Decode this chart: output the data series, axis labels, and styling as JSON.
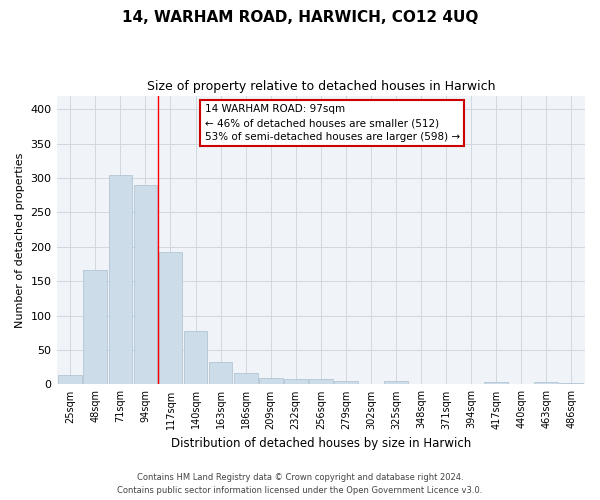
{
  "title1": "14, WARHAM ROAD, HARWICH, CO12 4UQ",
  "title2": "Size of property relative to detached houses in Harwich",
  "xlabel": "Distribution of detached houses by size in Harwich",
  "ylabel": "Number of detached properties",
  "categories": [
    "25sqm",
    "48sqm",
    "71sqm",
    "94sqm",
    "117sqm",
    "140sqm",
    "163sqm",
    "186sqm",
    "209sqm",
    "232sqm",
    "256sqm",
    "279sqm",
    "302sqm",
    "325sqm",
    "348sqm",
    "371sqm",
    "394sqm",
    "417sqm",
    "440sqm",
    "463sqm",
    "486sqm"
  ],
  "values": [
    13,
    167,
    305,
    290,
    192,
    77,
    32,
    17,
    9,
    8,
    8,
    5,
    0,
    5,
    0,
    0,
    0,
    3,
    0,
    3,
    2
  ],
  "bar_color": "#ccdde9",
  "bar_edge_color": "#aabfcf",
  "grid_color": "#d0d8e0",
  "redline_x": 3.5,
  "annotation_text": "14 WARHAM ROAD: 97sqm\n← 46% of detached houses are smaller (512)\n53% of semi-detached houses are larger (598) →",
  "annotation_box_color": "white",
  "annotation_box_edge": "#cc0000",
  "footer1": "Contains HM Land Registry data © Crown copyright and database right 2024.",
  "footer2": "Contains public sector information licensed under the Open Government Licence v3.0.",
  "ylim": [
    0,
    420
  ],
  "yticks": [
    0,
    50,
    100,
    150,
    200,
    250,
    300,
    350,
    400
  ],
  "bg_color": "#f0f4f8"
}
